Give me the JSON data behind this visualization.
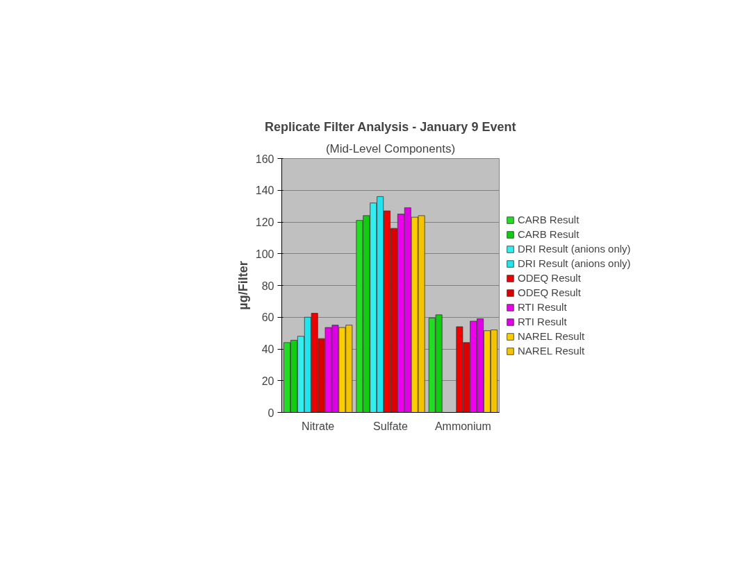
{
  "chart_data": {
    "type": "bar",
    "title": "Replicate Filter Analysis - January 9 Event",
    "subtitle": "(Mid-Level Components)",
    "ylabel": "µg/Filter",
    "categories": [
      "Nitrate",
      "Sulfate",
      "Ammonium"
    ],
    "series": [
      {
        "name": "CARB Result",
        "color": "#22dd22",
        "values": [
          44,
          121,
          59.5
        ]
      },
      {
        "name": "CARB Result",
        "color": "#11cc11",
        "values": [
          45.5,
          124,
          61.5
        ]
      },
      {
        "name": "DRI Result (anions only)",
        "color": "#33eeee",
        "values": [
          48,
          132,
          null
        ]
      },
      {
        "name": "DRI Result (anions only)",
        "color": "#22e4ee",
        "values": [
          60,
          136,
          null
        ]
      },
      {
        "name": "ODEQ Result",
        "color": "#ee0000",
        "values": [
          62.5,
          127,
          54
        ]
      },
      {
        "name": "ODEQ Result",
        "color": "#dd0000",
        "values": [
          46.5,
          116,
          44
        ]
      },
      {
        "name": "RTI Result",
        "color": "#ee00ee",
        "values": [
          53.5,
          125,
          57.5
        ]
      },
      {
        "name": "RTI Result",
        "color": "#e000e8",
        "values": [
          55,
          129,
          59
        ]
      },
      {
        "name": "NAREL Result",
        "color": "#ffcc00",
        "values": [
          53.5,
          123,
          51.5
        ]
      },
      {
        "name": "NAREL Result",
        "color": "#f5c400",
        "values": [
          55,
          124,
          52
        ]
      }
    ],
    "ylim": [
      0,
      160
    ],
    "yticks": [
      0,
      20,
      40,
      60,
      80,
      100,
      120,
      140,
      160
    ],
    "grid": "y",
    "legend": "right"
  }
}
